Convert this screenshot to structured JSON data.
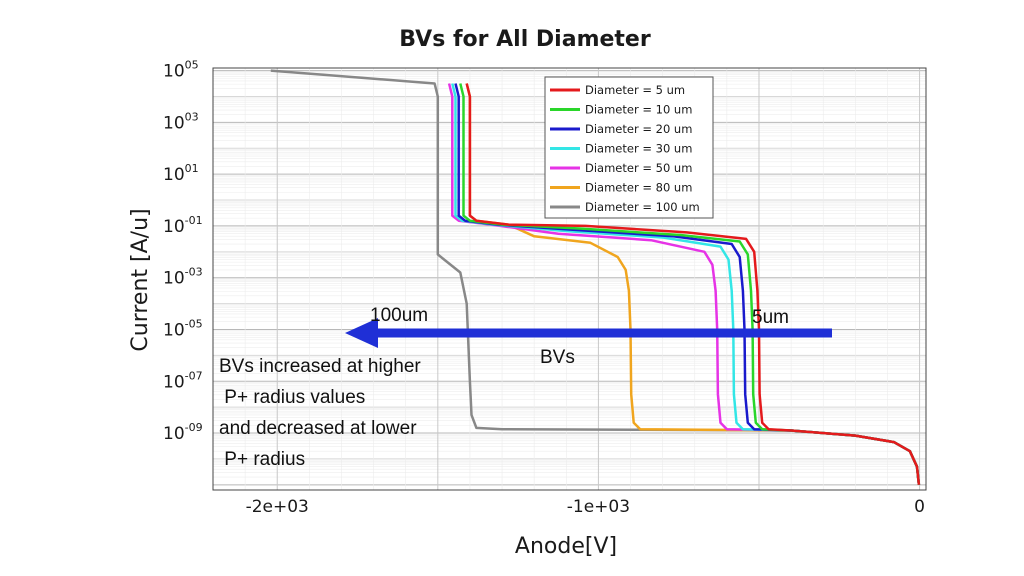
{
  "chart_data": {
    "type": "line",
    "title": "BVs for All Diameter",
    "xlabel": "Anode[V]",
    "ylabel": "Current [A/u]",
    "xlim": [
      -2200,
      20
    ],
    "ylim_log10": [
      -11.2,
      5.1
    ],
    "y_scale": "log",
    "grid": true,
    "legend_position": "top-right",
    "x_ticks": [
      {
        "value": -2000,
        "label": "-2e+03"
      },
      {
        "value": -1000,
        "label": "-1e+03"
      },
      {
        "value": 0,
        "label": "0"
      }
    ],
    "y_ticks": [
      {
        "exp": 5,
        "label": "10",
        "sup": "05"
      },
      {
        "exp": 3,
        "label": "10",
        "sup": "03"
      },
      {
        "exp": 1,
        "label": "10",
        "sup": "01"
      },
      {
        "exp": -1,
        "label": "10",
        "sup": "-01"
      },
      {
        "exp": -3,
        "label": "10",
        "sup": "-03"
      },
      {
        "exp": -5,
        "label": "10",
        "sup": "-05"
      },
      {
        "exp": -7,
        "label": "10",
        "sup": "-07"
      },
      {
        "exp": -9,
        "label": "10",
        "sup": "-09"
      }
    ],
    "series": [
      {
        "name": "Diameter = 5 um",
        "color": "#e41a1c",
        "bv": -500,
        "vtop": -1400,
        "hi": -1.0,
        "knee": -1.5
      },
      {
        "name": "Diameter = 10 um",
        "color": "#2ad62a",
        "bv": -520,
        "vtop": -1420,
        "hi": -1.1,
        "knee": -1.6
      },
      {
        "name": "Diameter = 20 um",
        "color": "#1a1acc",
        "bv": -545,
        "vtop": -1435,
        "hi": -1.15,
        "knee": -1.7
      },
      {
        "name": "Diameter = 30 um",
        "color": "#33e6e6",
        "bv": -580,
        "vtop": -1445,
        "hi": -1.2,
        "knee": -1.8
      },
      {
        "name": "Diameter = 50 um",
        "color": "#e633e6",
        "bv": -630,
        "vtop": -1455,
        "hi": -1.3,
        "knee": -2.0
      },
      {
        "name": "Diameter = 80 um",
        "color": "#f0a51e",
        "bv": -900,
        "vtop": -1400,
        "hi": -1.4,
        "knee": -2.2
      },
      {
        "name": "Diameter = 100 um",
        "color": "#888888",
        "bv": -1500,
        "vtop": -1500,
        "hi": -1.6,
        "knee": -2.2
      }
    ],
    "annotations": {
      "left_label": "100um",
      "right_label": "5um",
      "arrow_label": "BVs",
      "note_lines": [
        "BVs increased at higher",
        " P+ radius values",
        "and decreased at lower",
        " P+ radius"
      ],
      "arrow_color": "#1f2fd6"
    }
  }
}
